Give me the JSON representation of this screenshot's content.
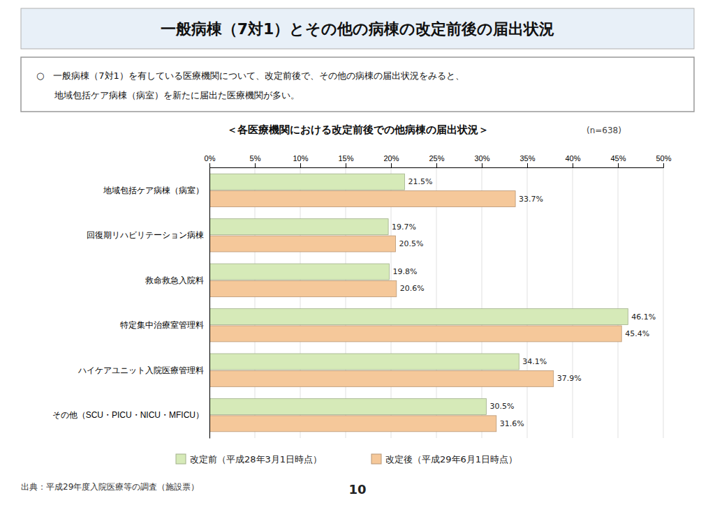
{
  "chart_data": {
    "type": "bar",
    "orientation": "horizontal",
    "title": "一般病棟（7対1）とその他の病棟の改定前後の届出状況",
    "subtitle": "＜各医療機関における改定前後での他病棟の届出状況＞",
    "annotations": [
      "○　一般病棟（7対1）を有している医療機関について、改定前後で、その他の病棟の届出状況をみると、",
      "　　地域包括ケア病棟（病室）を新たに届出た医療機関が多い。",
      "(n=638)",
      "出典：平成29年度入院医療等の調査（施設票）",
      "10"
    ],
    "categories": [
      "地域包括ケア病棟（病室）",
      "回復期リハビリテーション病棟",
      "救命救急入院料",
      "特定集中治療室管理料",
      "ハイケアユニット入院医療管理料",
      "その他（SCU・PICU・NICU・MFICU）"
    ],
    "series": [
      {
        "name": "改定前（平成28年3月1日時点）",
        "color": "#d6eab8",
        "values": [
          21.5,
          19.7,
          19.8,
          46.1,
          34.1,
          30.5
        ],
        "value_labels": [
          "21.5%",
          "19.7%",
          "19.8%",
          "46.1%",
          "34.1%",
          "30.5%"
        ]
      },
      {
        "name": "改定後（平成29年6月1日時点）",
        "color": "#f5c89a",
        "values": [
          33.7,
          20.5,
          20.6,
          45.4,
          37.9,
          31.6
        ],
        "value_labels": [
          "33.7%",
          "20.5%",
          "20.6%",
          "45.4%",
          "37.9%",
          "31.6%"
        ]
      }
    ],
    "xlim": [
      0,
      50
    ],
    "xticks": [
      {
        "value": 0,
        "label": "0%"
      },
      {
        "value": 5,
        "label": "5%"
      },
      {
        "value": 10,
        "label": "10%"
      },
      {
        "value": 15,
        "label": "15%"
      },
      {
        "value": 20,
        "label": "20%"
      },
      {
        "value": 25,
        "label": "25%"
      },
      {
        "value": 30,
        "label": "30%"
      },
      {
        "value": 35,
        "label": "35%"
      },
      {
        "value": 40,
        "label": "40%"
      },
      {
        "value": 45,
        "label": "45%"
      },
      {
        "value": 50,
        "label": "50%"
      }
    ],
    "grid": true,
    "data_labels": true,
    "legend": "bottom"
  }
}
